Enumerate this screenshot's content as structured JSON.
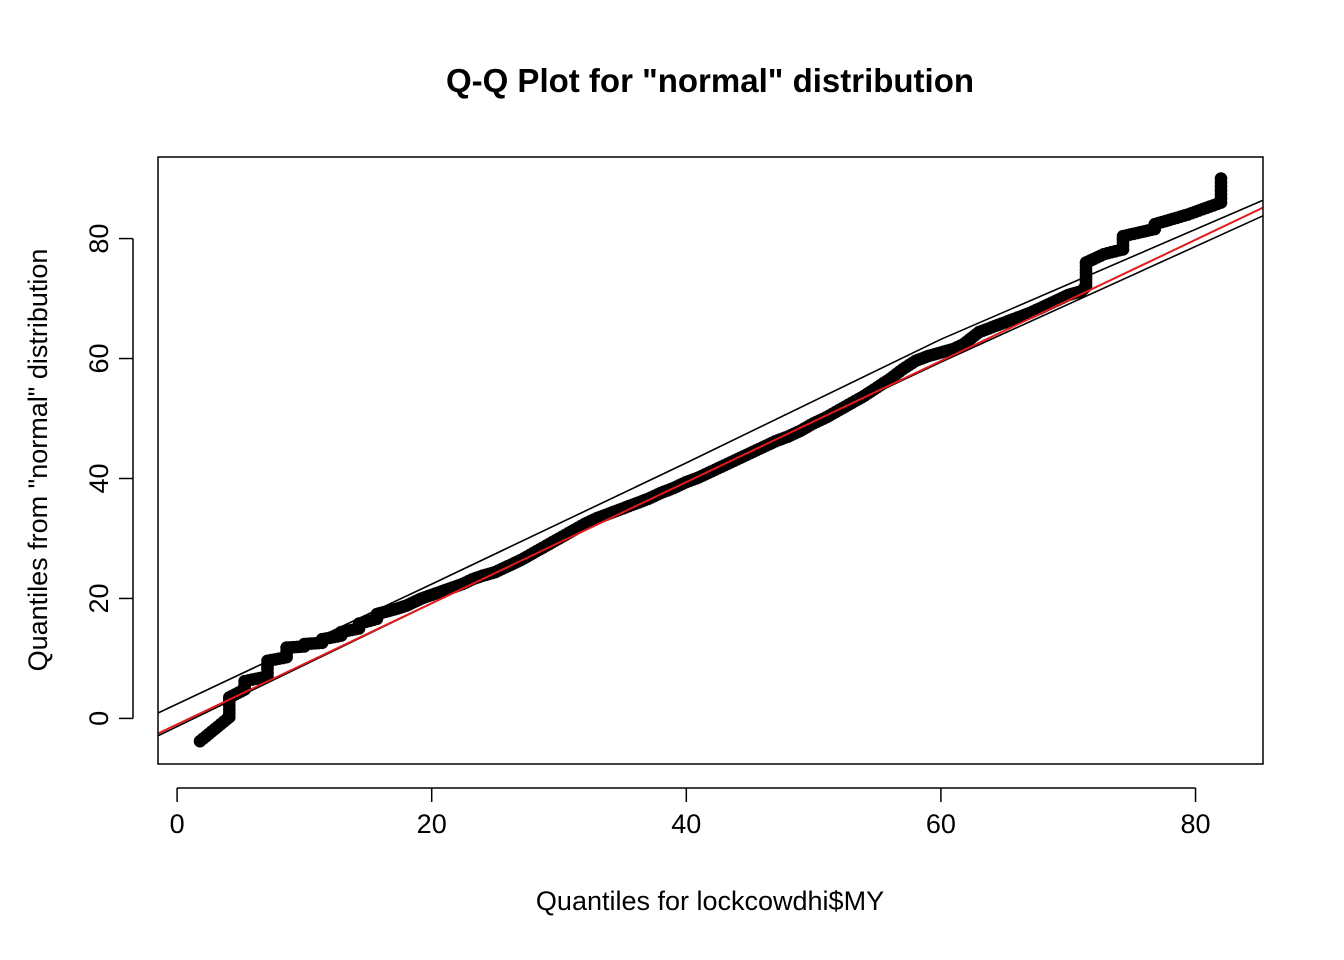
{
  "chart_data": {
    "type": "scatter",
    "title": "Q-Q Plot for \"normal\" distribution",
    "xlabel": "Quantiles for lockcowdhi$MY",
    "ylabel": "Quantiles from \"normal\" distribution",
    "xlim": [
      -1.5,
      85.3
    ],
    "ylim": [
      -7.6,
      93.6
    ],
    "x_ticks": [
      0,
      20,
      40,
      60,
      80
    ],
    "y_ticks": [
      0,
      20,
      40,
      60,
      80
    ],
    "x_tick_labels": [
      "0",
      "20",
      "40",
      "60",
      "80"
    ],
    "y_tick_labels": [
      "0",
      "20",
      "40",
      "60",
      "80"
    ],
    "grid": false,
    "colors": {
      "points": "#000000",
      "fit_line": "#e41a1c",
      "band_lines": "#000000"
    },
    "fit_line": {
      "slope": 1.01,
      "intercept": -1.0
    },
    "confidence_band": {
      "upper": [
        [
          -1.5,
          0.9
        ],
        [
          20,
          22.4
        ],
        [
          40,
          42.6
        ],
        [
          60,
          63.2
        ],
        [
          85.3,
          86.4
        ]
      ],
      "lower": [
        [
          -1.5,
          -2.9
        ],
        [
          20,
          19.2
        ],
        [
          40,
          39.4
        ],
        [
          60,
          59.4
        ],
        [
          85.3,
          83.8
        ]
      ]
    },
    "points_dense": [
      [
        1.8,
        -3.8
      ],
      [
        4.1,
        0.2
      ],
      [
        4.1,
        1.5
      ],
      [
        4.1,
        2.8
      ],
      [
        4.1,
        3.5
      ],
      [
        5.3,
        4.8
      ],
      [
        5.3,
        5.6
      ],
      [
        5.3,
        6.2
      ],
      [
        7.1,
        7.0
      ],
      [
        7.1,
        8.2
      ],
      [
        7.1,
        9.0
      ],
      [
        7.1,
        9.6
      ],
      [
        8.6,
        10.2
      ],
      [
        8.6,
        11.2
      ],
      [
        8.6,
        11.8
      ],
      [
        10.0,
        12.0
      ],
      [
        10.0,
        12.4
      ],
      [
        11.4,
        12.6
      ],
      [
        11.4,
        13.2
      ],
      [
        12.9,
        13.8
      ],
      [
        12.9,
        14.4
      ],
      [
        14.3,
        15.0
      ],
      [
        14.3,
        15.8
      ],
      [
        15.7,
        16.6
      ],
      [
        15.7,
        17.4
      ],
      [
        16.4,
        17.8
      ],
      [
        17.1,
        18.2
      ],
      [
        18.0,
        18.8
      ],
      [
        18.6,
        19.4
      ],
      [
        19.2,
        20.0
      ],
      [
        20.0,
        20.6
      ],
      [
        20.8,
        21.2
      ],
      [
        21.6,
        21.8
      ],
      [
        22.4,
        22.4
      ],
      [
        23.2,
        23.2
      ],
      [
        24.0,
        23.8
      ],
      [
        25.0,
        24.4
      ],
      [
        26.0,
        25.4
      ],
      [
        27.0,
        26.4
      ],
      [
        28.0,
        27.6
      ],
      [
        29.0,
        28.8
      ],
      [
        30.0,
        30.0
      ],
      [
        31.0,
        31.2
      ],
      [
        32.0,
        32.4
      ],
      [
        33.0,
        33.4
      ],
      [
        34.0,
        34.2
      ],
      [
        35.0,
        35.0
      ],
      [
        36.0,
        35.8
      ],
      [
        37.0,
        36.6
      ],
      [
        38.0,
        37.6
      ],
      [
        39.0,
        38.4
      ],
      [
        40.0,
        39.4
      ],
      [
        41.0,
        40.2
      ],
      [
        42.0,
        41.2
      ],
      [
        43.0,
        42.2
      ],
      [
        44.0,
        43.2
      ],
      [
        45.0,
        44.2
      ],
      [
        46.0,
        45.2
      ],
      [
        47.0,
        46.2
      ],
      [
        48.0,
        47.0
      ],
      [
        49.0,
        48.0
      ],
      [
        50.0,
        49.2
      ],
      [
        51.0,
        50.2
      ],
      [
        52.0,
        51.4
      ],
      [
        53.0,
        52.6
      ],
      [
        54.0,
        53.8
      ],
      [
        55.0,
        55.2
      ],
      [
        56.0,
        56.6
      ],
      [
        57.0,
        58.2
      ],
      [
        58.0,
        59.6
      ],
      [
        59.0,
        60.4
      ],
      [
        60.0,
        61.0
      ],
      [
        61.0,
        61.6
      ],
      [
        61.8,
        62.4
      ],
      [
        62.4,
        63.4
      ],
      [
        63.0,
        64.4
      ],
      [
        64.0,
        65.2
      ],
      [
        65.0,
        66.0
      ],
      [
        66.0,
        66.8
      ],
      [
        67.0,
        67.6
      ],
      [
        68.0,
        68.6
      ],
      [
        69.0,
        69.6
      ],
      [
        70.0,
        70.6
      ],
      [
        71.0,
        71.2
      ],
      [
        71.4,
        72.0
      ],
      [
        71.4,
        73.4
      ],
      [
        71.4,
        74.8
      ],
      [
        71.4,
        76.0
      ],
      [
        72.0,
        76.6
      ],
      [
        72.8,
        77.4
      ],
      [
        74.3,
        78.2
      ],
      [
        74.3,
        79.4
      ],
      [
        74.3,
        80.4
      ],
      [
        76.8,
        81.6
      ],
      [
        76.8,
        82.4
      ],
      [
        79.4,
        84.0
      ],
      [
        82.0,
        86.0
      ],
      [
        82.0,
        90.0
      ]
    ]
  }
}
